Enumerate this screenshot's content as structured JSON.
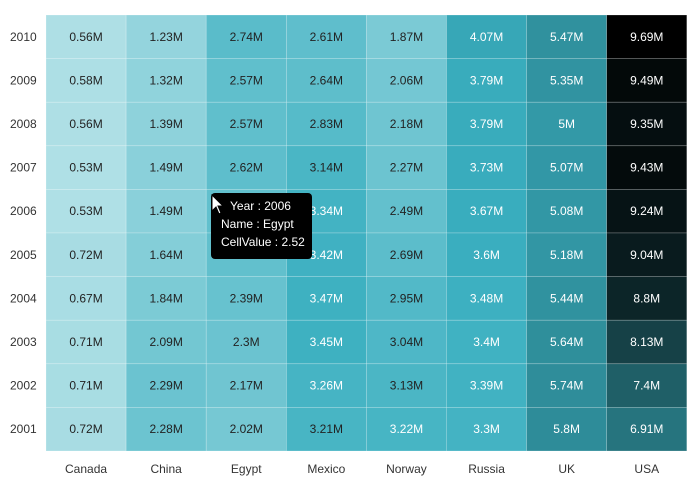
{
  "chart_data": {
    "type": "heatmap",
    "x_categories": [
      "Canada",
      "China",
      "Egypt",
      "Mexico",
      "Norway",
      "Russia",
      "UK",
      "USA"
    ],
    "y_categories": [
      "2010",
      "2009",
      "2008",
      "2007",
      "2006",
      "2005",
      "2004",
      "2003",
      "2002",
      "2001"
    ],
    "values": [
      [
        0.56,
        1.23,
        2.74,
        2.61,
        1.87,
        4.07,
        5.47,
        9.69
      ],
      [
        0.58,
        1.32,
        2.57,
        2.64,
        2.06,
        3.79,
        5.35,
        9.49
      ],
      [
        0.56,
        1.39,
        2.57,
        2.83,
        2.18,
        3.79,
        5.0,
        9.35
      ],
      [
        0.53,
        1.49,
        2.62,
        3.14,
        2.27,
        3.73,
        5.07,
        9.43
      ],
      [
        0.53,
        1.49,
        2.52,
        3.34,
        2.49,
        3.67,
        5.08,
        9.24
      ],
      [
        0.72,
        1.64,
        2.53,
        3.42,
        2.69,
        3.6,
        5.18,
        9.04
      ],
      [
        0.67,
        1.84,
        2.39,
        3.47,
        2.95,
        3.48,
        5.44,
        8.8
      ],
      [
        0.71,
        2.09,
        2.3,
        3.45,
        3.04,
        3.4,
        5.64,
        8.13
      ],
      [
        0.71,
        2.29,
        2.17,
        3.26,
        3.13,
        3.39,
        5.74,
        7.4
      ],
      [
        0.72,
        2.28,
        2.02,
        3.21,
        3.22,
        3.3,
        5.8,
        6.91
      ]
    ],
    "labels": [
      [
        "0.56M",
        "1.23M",
        "2.74M",
        "2.61M",
        "1.87M",
        "4.07M",
        "5.47M",
        "9.69M"
      ],
      [
        "0.58M",
        "1.32M",
        "2.57M",
        "2.64M",
        "2.06M",
        "3.79M",
        "5.35M",
        "9.49M"
      ],
      [
        "0.56M",
        "1.39M",
        "2.57M",
        "2.83M",
        "2.18M",
        "3.79M",
        "5M",
        "9.35M"
      ],
      [
        "0.53M",
        "1.49M",
        "2.62M",
        "3.14M",
        "2.27M",
        "3.73M",
        "5.07M",
        "9.43M"
      ],
      [
        "0.53M",
        "1.49M",
        "",
        "3.34M",
        "2.49M",
        "3.67M",
        "5.08M",
        "9.24M"
      ],
      [
        "0.72M",
        "1.64M",
        "",
        "3.42M",
        "2.69M",
        "3.6M",
        "5.18M",
        "9.04M"
      ],
      [
        "0.67M",
        "1.84M",
        "2.39M",
        "3.47M",
        "2.95M",
        "3.48M",
        "5.44M",
        "8.8M"
      ],
      [
        "0.71M",
        "2.09M",
        "2.3M",
        "3.45M",
        "3.04M",
        "3.4M",
        "5.64M",
        "8.13M"
      ],
      [
        "0.71M",
        "2.29M",
        "2.17M",
        "3.26M",
        "3.13M",
        "3.39M",
        "5.74M",
        "7.4M"
      ],
      [
        "0.72M",
        "2.28M",
        "2.02M",
        "3.21M",
        "3.22M",
        "3.3M",
        "5.8M",
        "6.91M"
      ]
    ],
    "color_stops": [
      "#b0e0e6",
      "#3aafc0",
      "#2a7f8a",
      "#000000"
    ],
    "value_range": [
      0.5,
      9.7
    ]
  },
  "tooltip": {
    "line1": "Year : 2006",
    "line2": "Name : Egypt",
    "line3": "CellValue : 2.52"
  }
}
